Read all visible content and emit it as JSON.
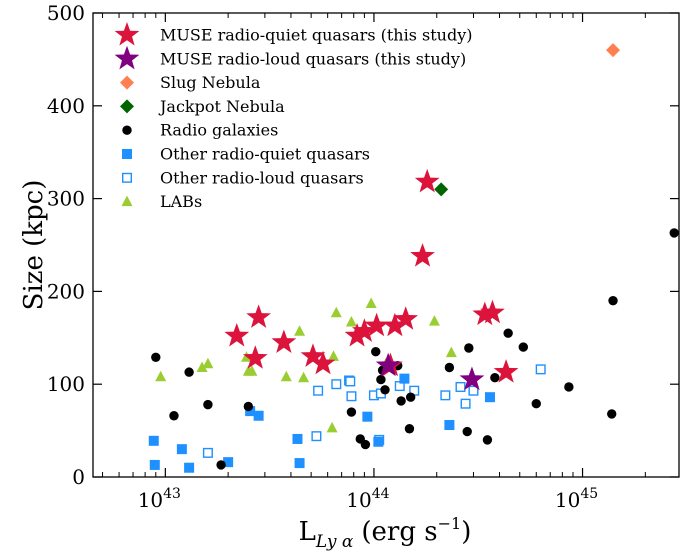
{
  "chart_data": {
    "type": "scatter",
    "title": "",
    "xlabel": "L",
    "xlabel_sub": "Ly α",
    "xlabel_units": "(erg s",
    "xlabel_units_exp": "−1",
    "xlabel_units_close": ")",
    "ylabel": "Size (kpc)",
    "xscale": "log",
    "xlim": [
      4.5e+42,
      2.9e+45
    ],
    "ylim": [
      0,
      500
    ],
    "x_major_ticks": [
      {
        "value": 1e+43,
        "base": "10",
        "exp": "43"
      },
      {
        "value": 1e+44,
        "base": "10",
        "exp": "44"
      },
      {
        "value": 1e+45,
        "base": "10",
        "exp": "45"
      }
    ],
    "y_ticks": [
      0,
      100,
      200,
      300,
      400,
      500
    ],
    "y_tick_labels": [
      "0",
      "100",
      "200",
      "300",
      "400",
      "500"
    ],
    "legend_position": "upper-left",
    "colors": {
      "muse_rq": "#dc143c",
      "muse_rl": "#800080",
      "slug": "#ff7f50",
      "jackpot": "#006400",
      "radio_galaxies": "#000000",
      "other_rq": "#1e90ff",
      "other_rl": "#1e90ff",
      "labs": "#9acd32"
    },
    "series": [
      {
        "key": "muse_rq",
        "name": "MUSE radio-quiet quasars (this study)",
        "marker": "star",
        "color": "#dc143c",
        "points": [
          [
            2.2e+43,
            152
          ],
          [
            2.8e+43,
            172
          ],
          [
            2.7e+43,
            128
          ],
          [
            3.7e+43,
            145
          ],
          [
            5.1e+43,
            130
          ],
          [
            5.7e+43,
            122
          ],
          [
            8.3e+43,
            152
          ],
          [
            9e+43,
            157
          ],
          [
            1.03e+44,
            163
          ],
          [
            1.26e+44,
            163
          ],
          [
            1.42e+44,
            170
          ],
          [
            1.2e+44,
            120
          ],
          [
            1.8e+44,
            318
          ],
          [
            1.71e+44,
            238
          ],
          [
            3.4e+44,
            175
          ],
          [
            3.7e+44,
            177
          ],
          [
            4.3e+44,
            113
          ]
        ]
      },
      {
        "key": "muse_rl",
        "name": "MUSE radio-loud quasars (this study)",
        "marker": "star",
        "color": "#800080",
        "points": [
          [
            1.17e+44,
            120
          ],
          [
            2.95e+44,
            105
          ]
        ]
      },
      {
        "key": "slug",
        "name": "Slug Nebula",
        "marker": "diamond",
        "color": "#ff7f50",
        "points": [
          [
            1.4e+45,
            460
          ]
        ]
      },
      {
        "key": "jackpot",
        "name": "Jackpot Nebula",
        "marker": "diamond",
        "color": "#006400",
        "points": [
          [
            2.1e+44,
            310
          ]
        ]
      },
      {
        "key": "radio_galaxies",
        "name": "Radio galaxies",
        "marker": "circle",
        "color": "#000000",
        "points": [
          [
            9e+42,
            129
          ],
          [
            1.1e+43,
            66
          ],
          [
            1.3e+43,
            113
          ],
          [
            1.6e+43,
            78
          ],
          [
            1.85e+43,
            13
          ],
          [
            2.5e+43,
            76
          ],
          [
            7.8e+43,
            70
          ],
          [
            8.6e+43,
            41
          ],
          [
            9.1e+43,
            35
          ],
          [
            1.02e+44,
            135
          ],
          [
            1.08e+44,
            105
          ],
          [
            1.13e+44,
            94
          ],
          [
            1.1e+44,
            115
          ],
          [
            1.3e+44,
            120
          ],
          [
            1.35e+44,
            82
          ],
          [
            1.48e+44,
            52
          ],
          [
            1.5e+44,
            86
          ],
          [
            2.3e+44,
            118
          ],
          [
            2.8e+44,
            49
          ],
          [
            2.85e+44,
            139
          ],
          [
            3.5e+44,
            40
          ],
          [
            3.8e+44,
            107
          ],
          [
            4.4e+44,
            155
          ],
          [
            5.2e+44,
            140
          ],
          [
            6e+44,
            79
          ],
          [
            8.6e+44,
            97
          ],
          [
            1.38e+45,
            68
          ],
          [
            1.4e+45,
            190
          ],
          [
            2.75e+45,
            263
          ]
        ]
      },
      {
        "key": "other_rq",
        "name": "Other radio-quiet quasars",
        "marker": "square",
        "color": "#1e90ff",
        "filled": true,
        "points": [
          [
            8.8e+42,
            39
          ],
          [
            8.9e+42,
            13
          ],
          [
            1.2e+43,
            30
          ],
          [
            1.3e+43,
            10
          ],
          [
            2e+43,
            16
          ],
          [
            2.55e+43,
            71
          ],
          [
            2.8e+43,
            66
          ],
          [
            4.3e+43,
            41
          ],
          [
            4.4e+43,
            15
          ],
          [
            9.3e+43,
            65
          ],
          [
            1.05e+44,
            38
          ],
          [
            1.4e+44,
            106
          ],
          [
            2.3e+44,
            56
          ],
          [
            3.6e+44,
            86
          ]
        ]
      },
      {
        "key": "other_rl",
        "name": "Other radio-loud quasars",
        "marker": "square",
        "color": "#1e90ff",
        "filled": false,
        "points": [
          [
            1.6e+43,
            26
          ],
          [
            5.3e+43,
            44
          ],
          [
            5.4e+43,
            93
          ],
          [
            6.6e+43,
            100
          ],
          [
            7.6e+43,
            104
          ],
          [
            7.7e+43,
            103
          ],
          [
            7.8e+43,
            87
          ],
          [
            1e+44,
            88
          ],
          [
            1.06e+44,
            40
          ],
          [
            1.08e+44,
            90
          ],
          [
            1.33e+44,
            98
          ],
          [
            1.56e+44,
            93
          ],
          [
            2.2e+44,
            88
          ],
          [
            2.6e+44,
            97
          ],
          [
            2.75e+44,
            79
          ],
          [
            3e+44,
            93
          ],
          [
            6.3e+44,
            116
          ]
        ]
      },
      {
        "key": "labs",
        "name": "LABs",
        "marker": "triangle",
        "color": "#9acd32",
        "points": [
          [
            9.5e+42,
            108
          ],
          [
            1.5e+43,
            118
          ],
          [
            1.6e+43,
            122
          ],
          [
            2.45e+43,
            129
          ],
          [
            2.5e+43,
            114
          ],
          [
            2.6e+43,
            114
          ],
          [
            3.8e+43,
            108
          ],
          [
            4.4e+43,
            157
          ],
          [
            4.6e+43,
            107
          ],
          [
            6.3e+43,
            53
          ],
          [
            6.4e+43,
            130
          ],
          [
            6.6e+43,
            177
          ],
          [
            7.8e+43,
            167
          ],
          [
            9.7e+43,
            187
          ],
          [
            1.03e+44,
            167
          ],
          [
            1.14e+44,
            122
          ],
          [
            1.95e+44,
            168
          ],
          [
            2.35e+44,
            134
          ]
        ]
      }
    ]
  }
}
